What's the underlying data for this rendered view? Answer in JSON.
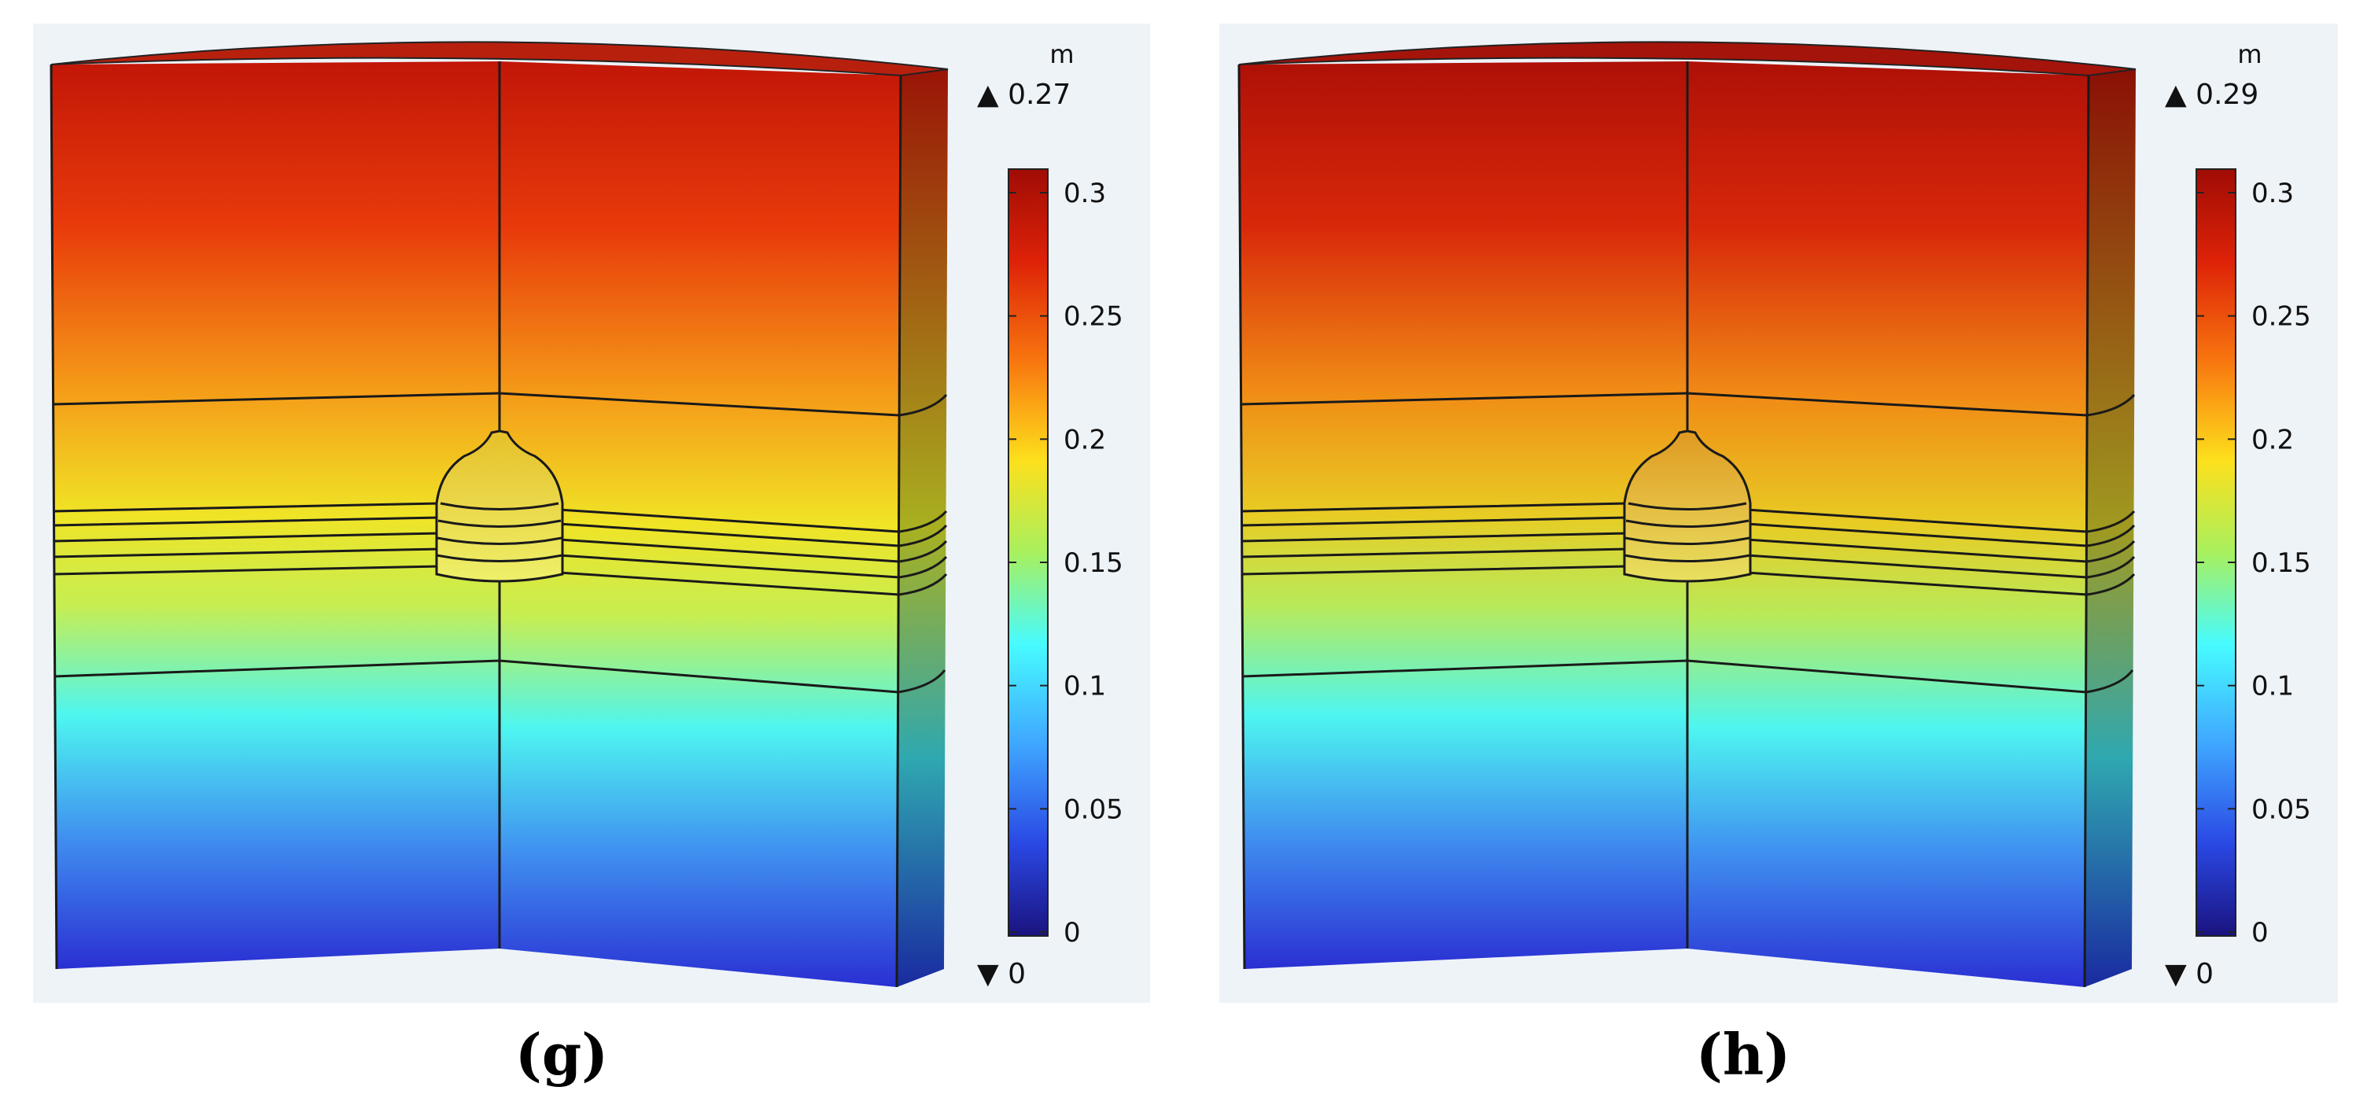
{
  "colors": {
    "background": "#eef3f8",
    "colormap": [
      "#1a137f",
      "#2a3fe0",
      "#3fa6ff",
      "#47fbff",
      "#b6f05a",
      "#fff01e",
      "#ffa01a",
      "#f43a08",
      "#a00c05"
    ]
  },
  "panels": [
    {
      "caption": "(g)",
      "colorbar": {
        "unit": "m",
        "max_marker": "▲ 0.27",
        "min_marker": "▼ 0",
        "ticks": [
          "0.3",
          "0.25",
          "0.2",
          "0.15",
          "0.1",
          "0.05",
          "0"
        ]
      },
      "max_value": 0.27
    },
    {
      "caption": "(h)",
      "colorbar": {
        "unit": "m",
        "max_marker": "▲ 0.29",
        "min_marker": "▼ 0",
        "ticks": [
          "0.3",
          "0.25",
          "0.2",
          "0.15",
          "0.1",
          "0.05",
          "0"
        ]
      },
      "max_value": 0.29
    }
  ]
}
